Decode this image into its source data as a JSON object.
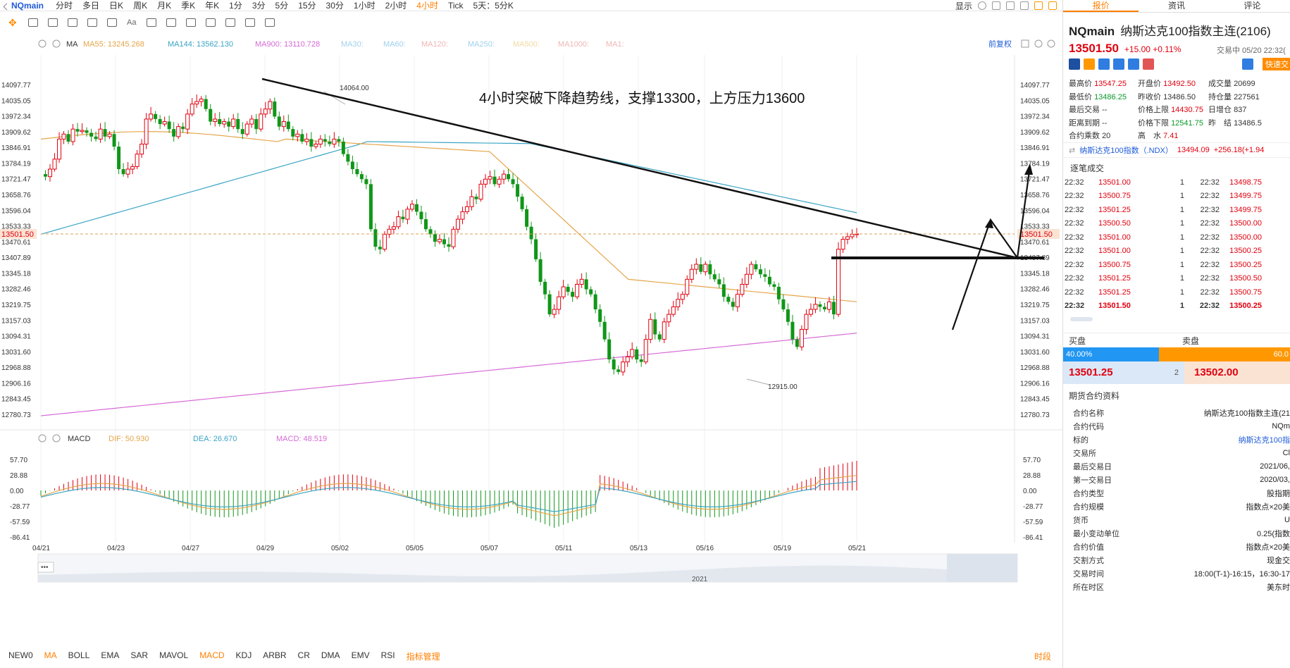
{
  "toolbar": {
    "symbol": "NQmain",
    "periods": [
      "分时",
      "多日",
      "日K",
      "周K",
      "月K",
      "季K",
      "年K",
      "1分",
      "3分",
      "5分",
      "15分",
      "30分",
      "1小时",
      "2小时",
      "4小时",
      "Tick",
      "5天：5分K"
    ],
    "active_period": "4小时",
    "display_label": "显示"
  },
  "ma_legend": {
    "label": "MA",
    "items": [
      {
        "text": "MA55: 13245.268",
        "color": "#e5a54a"
      },
      {
        "text": "MA144: 13562.130",
        "color": "#3aa5c5"
      },
      {
        "text": "MA900: 13110.728",
        "color": "#d66ad6"
      },
      {
        "text": "MA30:",
        "color": "#9fd1ef"
      },
      {
        "text": "MA60:",
        "color": "#9fd1ef"
      },
      {
        "text": "MA120:",
        "color": "#f0b6b6"
      },
      {
        "text": "MA250:",
        "color": "#9fd1ef"
      },
      {
        "text": "MA500:",
        "color": "#f2d9a2"
      },
      {
        "text": "MA1000:",
        "color": "#f0b6b6"
      },
      {
        "text": "MA1:",
        "color": "#f0b6b6"
      }
    ],
    "right_label": "前复权"
  },
  "annotation": "4小时突破下降趋势线，支撑13300，上方压力13600",
  "price_axis": [
    "14097.77",
    "14035.05",
    "13972.34",
    "13909.62",
    "13846.91",
    "13784.19",
    "13721.47",
    "13658.76",
    "13596.04",
    "13533.33",
    "13470.61",
    "13407.89",
    "13345.18",
    "13282.46",
    "13219.75",
    "13157.03",
    "13094.31",
    "13031.60",
    "12968.88",
    "12906.16",
    "12843.45",
    "12780.73"
  ],
  "current_price_tag": "13501.50",
  "high_marker": "14064.00",
  "low_marker": "12915.00",
  "macd_legend": {
    "label": "MACD",
    "dif": "DIF: 50.930",
    "dea": "DEA: 26.670",
    "macd": "MACD: 48.519"
  },
  "macd_axis": [
    "57.70",
    "28.88",
    "0.00",
    "-28.77",
    "-57.59",
    "-86.41"
  ],
  "date_axis": [
    "04/21",
    "04/23",
    "04/27",
    "04/29",
    "05/02",
    "05/05",
    "05/07",
    "05/11",
    "05/13",
    "05/16",
    "05/19",
    "05/21"
  ],
  "overview_year": "2021",
  "indicator_tabs": [
    "NEW0",
    "MA",
    "BOLL",
    "EMA",
    "SAR",
    "MAVOL",
    "MACD",
    "KDJ",
    "ARBR",
    "CR",
    "DMA",
    "EMV",
    "RSI",
    "指标管理"
  ],
  "indicator_active": [
    "MA",
    "MACD",
    "指标管理"
  ],
  "indicator_right": "时段",
  "panel": {
    "tabs": [
      "报价",
      "资讯",
      "评论"
    ],
    "code": "NQmain",
    "name": "纳斯达克100指数主连(2106)",
    "price": "13501.50",
    "change": "+15.00 +0.11%",
    "time": "交易中 05/20 22:32(",
    "quick_trade": "快速交",
    "stats": {
      "high_label": "最高价",
      "high": "13547.25",
      "low_label": "最低价",
      "low": "13486.25",
      "last_trade_label": "最后交易",
      "last_trade": "--",
      "expiry_label": "距离到期",
      "expiry": "--",
      "mult_label": "合约乘数",
      "mult": "20",
      "open_label": "开盘价",
      "open": "13492.50",
      "prevclose_label": "昨收价",
      "prevclose": "13486.50",
      "upper_label": "价格上限",
      "upper": "14430.75",
      "lower_label": "价格下限",
      "lower": "12541.75",
      "hw_label": "高　水",
      "hw": "7.41",
      "vol_label": "成交量",
      "vol": "20699",
      "oi_label": "持仓量",
      "oi": "227561",
      "daily_label": "日增仓",
      "daily": "837",
      "settle_label": "昨　结",
      "settle": "13486.5"
    },
    "ndx": {
      "name": "纳斯达克100指数（.NDX）",
      "value": "13494.09",
      "change": "+256.18(+1.94"
    },
    "tick_title": "逐笔成交",
    "ticks": [
      {
        "t1": "22:32",
        "p1": "13501.00",
        "q": "1",
        "t2": "22:32",
        "p2": "13498.75"
      },
      {
        "t1": "22:32",
        "p1": "13500.75",
        "q": "1",
        "t2": "22:32",
        "p2": "13499.75"
      },
      {
        "t1": "22:32",
        "p1": "13501.25",
        "q": "1",
        "t2": "22:32",
        "p2": "13499.75"
      },
      {
        "t1": "22:32",
        "p1": "13500.50",
        "q": "1",
        "t2": "22:32",
        "p2": "13500.00"
      },
      {
        "t1": "22:32",
        "p1": "13501.00",
        "q": "1",
        "t2": "22:32",
        "p2": "13500.00"
      },
      {
        "t1": "22:32",
        "p1": "13501.00",
        "q": "1",
        "t2": "22:32",
        "p2": "13500.25"
      },
      {
        "t1": "22:32",
        "p1": "13500.75",
        "q": "1",
        "t2": "22:32",
        "p2": "13500.25"
      },
      {
        "t1": "22:32",
        "p1": "13501.25",
        "q": "1",
        "t2": "22:32",
        "p2": "13500.50"
      },
      {
        "t1": "22:32",
        "p1": "13501.25",
        "q": "1",
        "t2": "22:32",
        "p2": "13500.75"
      },
      {
        "t1": "22:32",
        "p1": "13501.50",
        "q": "1",
        "t2": "22:32",
        "p2": "13500.25"
      }
    ],
    "bid_label": "买盘",
    "ask_label": "卖盘",
    "bid_pct": "40.00%",
    "ask_pct": "60.0",
    "bid_price": "13501.25",
    "bid_qty": "2",
    "ask_price": "13502.00",
    "contract_title": "期货合约资料",
    "contract": [
      {
        "k": "合约名称",
        "v": "纳斯达克100指数主连(21"
      },
      {
        "k": "合约代码",
        "v": "NQm"
      },
      {
        "k": "标的",
        "v": "纳斯达克100指"
      },
      {
        "k": "交易所",
        "v": "Cl"
      },
      {
        "k": "最后交易日",
        "v": "2021/06,"
      },
      {
        "k": "第一交易日",
        "v": "2020/03,"
      },
      {
        "k": "合约类型",
        "v": "股指期"
      },
      {
        "k": "合约规模",
        "v": "指数点×20美"
      },
      {
        "k": "货币",
        "v": "U"
      },
      {
        "k": "最小变动单位",
        "v": "0.25(指数"
      },
      {
        "k": "合约价值",
        "v": "指数点×20美"
      },
      {
        "k": "交割方式",
        "v": "现金交"
      },
      {
        "k": "交易时间",
        "v": "18:00(T-1)-16:15，16:30-17"
      },
      {
        "k": "所在时区",
        "v": "美东时"
      }
    ]
  }
}
